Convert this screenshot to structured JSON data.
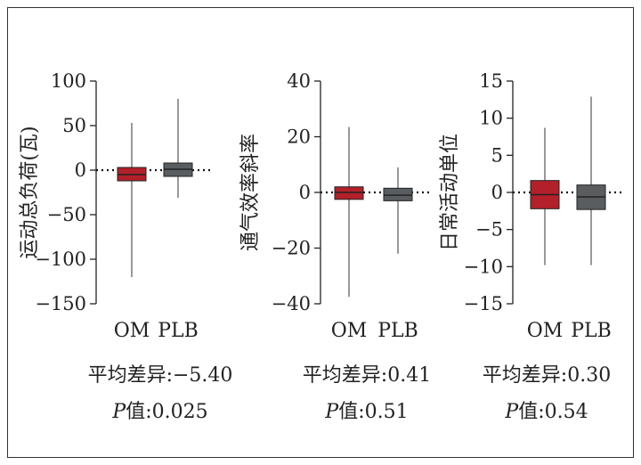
{
  "chart_data": [
    {
      "type": "box",
      "ylabel": "运动总负荷(瓦)",
      "ylim": [
        -150,
        100
      ],
      "yticks": [
        100,
        50,
        0,
        -50,
        -100,
        -150
      ],
      "ytick_labels": [
        "100",
        "50",
        "0",
        "−50",
        "−100",
        "−150"
      ],
      "reference_line": 0,
      "categories": [
        "OM",
        "PLB"
      ],
      "boxes": [
        {
          "category": "OM",
          "color": "#b3202a",
          "min": -120,
          "q1": -12,
          "median": -5,
          "q3": 3,
          "max": 53
        },
        {
          "category": "PLB",
          "color": "#5a5d5f",
          "min": -31,
          "q1": -7,
          "median": 1,
          "q3": 8,
          "max": 80
        }
      ],
      "stats": {
        "mean_diff_label": "平均差异:",
        "mean_diff_value": "−5.40",
        "p_label": "P",
        "p_suffix": "值:",
        "p_value": "0.025"
      }
    },
    {
      "type": "box",
      "ylabel": "通气效率斜率",
      "ylim": [
        -40,
        40
      ],
      "yticks": [
        40,
        20,
        0,
        -20,
        -40
      ],
      "ytick_labels": [
        "40",
        "20",
        "0",
        "−20",
        "−40"
      ],
      "reference_line": 0,
      "categories": [
        "OM",
        "PLB"
      ],
      "boxes": [
        {
          "category": "OM",
          "color": "#b3202a",
          "min": -37.5,
          "q1": -2.5,
          "median": 0,
          "q3": 2,
          "max": 23.5
        },
        {
          "category": "PLB",
          "color": "#5a5d5f",
          "min": -22,
          "q1": -3,
          "median": -1,
          "q3": 1.5,
          "max": 9
        }
      ],
      "stats": {
        "mean_diff_label": "平均差异:",
        "mean_diff_value": "0.41",
        "p_label": "P",
        "p_suffix": "值:",
        "p_value": "0.51"
      }
    },
    {
      "type": "box",
      "ylabel": "日常活动单位",
      "ylim": [
        -15,
        15
      ],
      "yticks": [
        15,
        10,
        5,
        0,
        -5,
        -10,
        -15
      ],
      "ytick_labels": [
        "15",
        "10",
        "5",
        "0",
        "−5",
        "−10",
        "−15"
      ],
      "reference_line": 0,
      "categories": [
        "OM",
        "PLB"
      ],
      "boxes": [
        {
          "category": "OM",
          "color": "#b3202a",
          "min": -9.8,
          "q1": -2.2,
          "median": -0.3,
          "q3": 1.6,
          "max": 8.7
        },
        {
          "category": "PLB",
          "color": "#5a5d5f",
          "min": -9.8,
          "q1": -2.3,
          "median": -0.6,
          "q3": 1.0,
          "max": 12.9
        }
      ],
      "stats": {
        "mean_diff_label": "平均差异:",
        "mean_diff_value": "0.30",
        "p_label": "P",
        "p_suffix": "值:",
        "p_value": "0.54"
      }
    }
  ]
}
